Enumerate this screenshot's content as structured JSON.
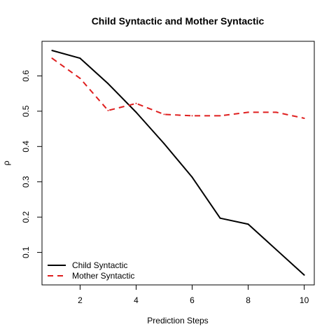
{
  "chart_data": {
    "type": "line",
    "title": "Child Syntactic and Mother Syntactic",
    "xlabel": "Prediction Steps",
    "ylabel": "ρ",
    "xlim": [
      0.64,
      10.36
    ],
    "ylim": [
      0.008,
      0.698
    ],
    "x_ticks": [
      2,
      4,
      6,
      8,
      10
    ],
    "y_ticks": [
      0.1,
      0.2,
      0.3,
      0.4,
      0.5,
      0.6
    ],
    "x_tick_labels": [
      "2",
      "4",
      "6",
      "8",
      "10"
    ],
    "y_tick_labels": [
      "0.1",
      "0.2",
      "0.3",
      "0.4",
      "0.5",
      "0.6"
    ],
    "x": [
      1,
      2,
      3,
      4,
      5,
      6,
      7,
      8,
      9,
      10
    ],
    "series": [
      {
        "name": "Child Syntactic",
        "color": "#000000",
        "dash": "solid",
        "values": [
          0.672,
          0.65,
          0.578,
          0.497,
          0.408,
          0.313,
          0.197,
          0.18,
          0.108,
          0.036
        ]
      },
      {
        "name": "Mother Syntactic",
        "color": "#DF1F1F",
        "dash": "dashed",
        "values": [
          0.65,
          0.593,
          0.502,
          0.522,
          0.491,
          0.487,
          0.487,
          0.497,
          0.497,
          0.48
        ]
      }
    ],
    "legend_position": "bottom-left",
    "grid": false
  }
}
